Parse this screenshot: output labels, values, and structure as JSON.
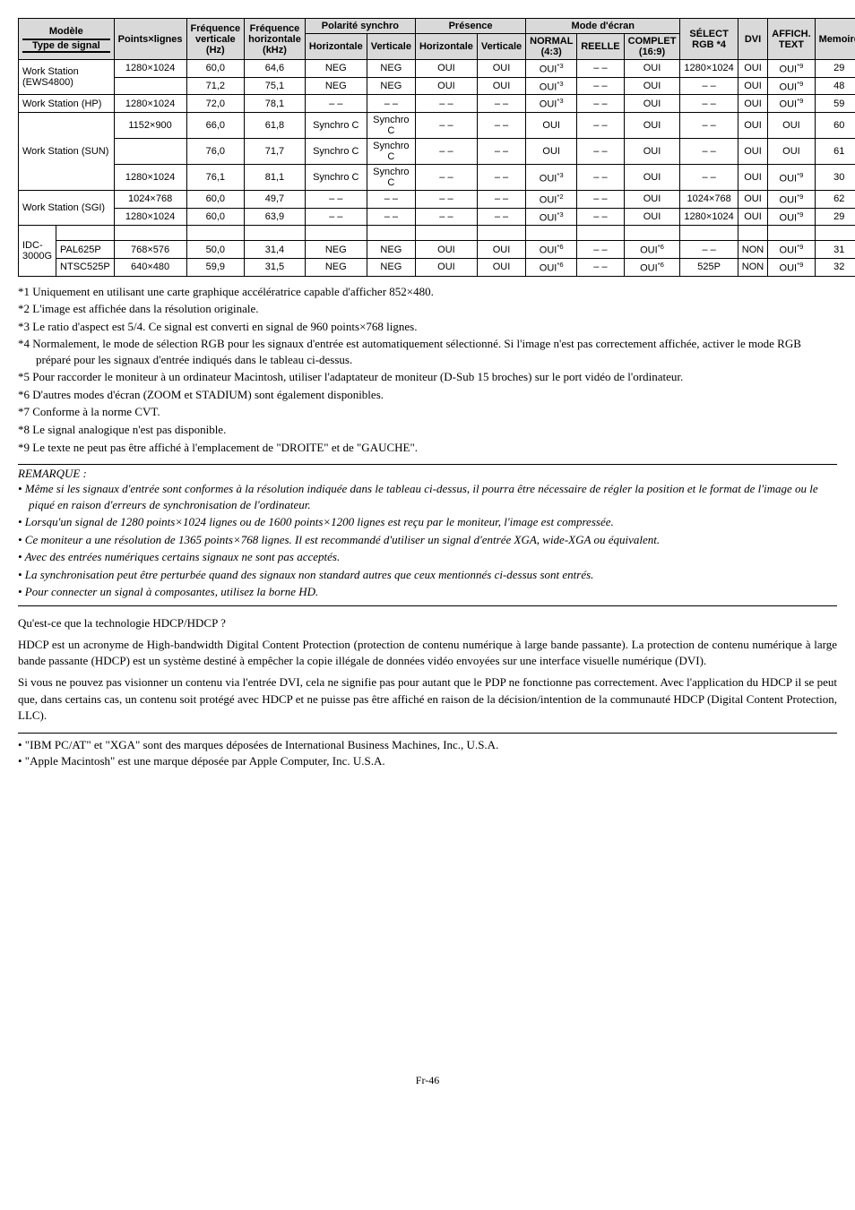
{
  "table": {
    "headers": {
      "modele": "Modèle",
      "type_signal": "Type de signal",
      "points_lignes": "Points×lignes",
      "freq_vert": "Fréquence verticale (Hz)",
      "freq_horiz": "Fréquence horizontale (kHz)",
      "polarite": "Polarité synchro",
      "polar_h": "Horizontale",
      "polar_v": "Verticale",
      "presence": "Présence",
      "pres_h": "Horizontale",
      "pres_v": "Verticale",
      "mode_ecran": "Mode d'écran",
      "mode_normal": "NORMAL (4:3)",
      "mode_reelle": "REELLE",
      "mode_complet": "COMPLET (16:9)",
      "select_rgb": "SÉLECT RGB *4",
      "dvi": "DVI",
      "affich_text": "AFFICH. TEXT",
      "memoire": "Memoire"
    },
    "rows": [
      {
        "model": "Work Station (EWS4800)",
        "rowspan": 2,
        "pl": "1280×1024",
        "fv": "60,0",
        "fh": "64,6",
        "ph": "NEG",
        "pv": "NEG",
        "prh": "OUI",
        "prv": "OUI",
        "mn": "OUI*3",
        "mr": "– –",
        "mc": "OUI",
        "rgb": "1280×1024",
        "dvi": "OUI",
        "at": "OUI*9",
        "mem": "29"
      },
      {
        "pl": "",
        "fv": "71,2",
        "fh": "75,1",
        "ph": "NEG",
        "pv": "NEG",
        "prh": "OUI",
        "prv": "OUI",
        "mn": "OUI*3",
        "mr": "– –",
        "mc": "OUI",
        "rgb": "– –",
        "dvi": "OUI",
        "at": "OUI*9",
        "mem": "48"
      },
      {
        "model": "Work Station (HP)",
        "rowspan": 1,
        "pl": "1280×1024",
        "fv": "72,0",
        "fh": "78,1",
        "ph": "– –",
        "pv": "– –",
        "prh": "– –",
        "prv": "– –",
        "mn": "OUI*3",
        "mr": "– –",
        "mc": "OUI",
        "rgb": "– –",
        "dvi": "OUI",
        "at": "OUI*9",
        "mem": "59"
      },
      {
        "model": "Work Station (SUN)",
        "rowspan": 3,
        "pl": "1152×900",
        "fv": "66,0",
        "fh": "61,8",
        "ph": "Synchro C",
        "pv": "Synchro C",
        "prh": "– –",
        "prv": "– –",
        "mn": "OUI",
        "mr": "– –",
        "mc": "OUI",
        "rgb": "– –",
        "dvi": "OUI",
        "at": "OUI",
        "mem": "60"
      },
      {
        "pl": "",
        "fv": "76,0",
        "fh": "71,7",
        "ph": "Synchro C",
        "pv": "Synchro C",
        "prh": "– –",
        "prv": "– –",
        "mn": "OUI",
        "mr": "– –",
        "mc": "OUI",
        "rgb": "– –",
        "dvi": "OUI",
        "at": "OUI",
        "mem": "61"
      },
      {
        "pl": "1280×1024",
        "fv": "76,1",
        "fh": "81,1",
        "ph": "Synchro C",
        "pv": "Synchro C",
        "prh": "– –",
        "prv": "– –",
        "mn": "OUI*3",
        "mr": "– –",
        "mc": "OUI",
        "rgb": "– –",
        "dvi": "OUI",
        "at": "OUI*9",
        "mem": "30"
      },
      {
        "model": "Work Station (SGI)",
        "rowspan": 2,
        "pl": "1024×768",
        "fv": "60,0",
        "fh": "49,7",
        "ph": "– –",
        "pv": "– –",
        "prh": "– –",
        "prv": "– –",
        "mn": "OUI*2",
        "mr": "– –",
        "mc": "OUI",
        "rgb": "1024×768",
        "dvi": "OUI",
        "at": "OUI*9",
        "mem": "62"
      },
      {
        "pl": "1280×1024",
        "fv": "60,0",
        "fh": "63,9",
        "ph": "– –",
        "pv": "– –",
        "prh": "– –",
        "prv": "– –",
        "mn": "OUI*3",
        "mr": "– –",
        "mc": "OUI",
        "rgb": "1280×1024",
        "dvi": "OUI",
        "at": "OUI*9",
        "mem": "29"
      },
      {
        "model": "IDC-3000G",
        "rowspan": 1,
        "empty": true
      },
      {
        "sub": "PAL625P",
        "pl": "768×576",
        "fv": "50,0",
        "fh": "31,4",
        "ph": "NEG",
        "pv": "NEG",
        "prh": "OUI",
        "prv": "OUI",
        "mn": "OUI*6",
        "mr": "– –",
        "mc": "OUI*6",
        "rgb": "– –",
        "dvi": "NON",
        "at": "OUI*9",
        "mem": "31"
      },
      {
        "sub": "NTSC525P",
        "pl": "640×480",
        "fv": "59,9",
        "fh": "31,5",
        "ph": "NEG",
        "pv": "NEG",
        "prh": "OUI",
        "prv": "OUI",
        "mn": "OUI*6",
        "mr": "– –",
        "mc": "OUI*6",
        "rgb": "525P",
        "dvi": "NON",
        "at": "OUI*9",
        "mem": "32"
      }
    ]
  },
  "footnotes": [
    "*1 Uniquement en utilisant une carte graphique accélératrice capable d'afficher 852×480.",
    "*2 L'image est affichée dans la résolution originale.",
    "*3 Le ratio d'aspect est 5/4. Ce signal est converti en signal de 960 points×768 lignes.",
    "*4 Normalement, le mode de sélection RGB pour les signaux d'entrée est automatiquement sélectionné. Si l'image n'est pas correctement affichée, activer le mode RGB préparé pour les signaux d'entrée indiqués dans le tableau ci-dessus.",
    "*5 Pour raccorder le moniteur à un ordinateur Macintosh, utiliser l'adaptateur de moniteur (D-Sub 15 broches) sur le port vidéo de l'ordinateur.",
    "*6 D'autres modes d'écran (ZOOM et STADIUM) sont également disponibles.",
    "*7 Conforme à la norme CVT.",
    "*8 Le signal analogique n'est pas disponible.",
    "*9 Le texte ne peut pas être affiché à l'emplacement de \"DROITE\" et de \"GAUCHE\"."
  ],
  "remark_title": "REMARQUE :",
  "remarks": [
    "• Même si les signaux d'entrée sont conformes à la résolution indiquée dans le tableau ci-dessus, il pourra être nécessaire de régler la position et le format de l'image ou le piqué en raison d'erreurs de synchronisation de l'ordinateur.",
    "• Lorsqu'un signal de 1280 points×1024 lignes ou de 1600 points×1200 lignes est reçu par le moniteur, l'image est compressée.",
    "• Ce moniteur a une résolution de 1365 points×768 lignes. Il est recommandé d'utiliser un signal d'entrée XGA, wide-XGA ou équivalent.",
    "• Avec des entrées numériques certains signaux ne sont pas acceptés.",
    "• La synchronisation peut être perturbée quand des signaux non standard autres que ceux mentionnés ci-dessus sont entrés.",
    "• Pour connecter un signal à composantes, utilisez la borne HD."
  ],
  "body": {
    "q": "Qu'est-ce que la technologie HDCP/HDCP ?",
    "p1": "HDCP est un acronyme de High-bandwidth Digital Content Protection (protection de contenu numérique à large bande passante). La protection de contenu numérique à large bande passante (HDCP) est un système destiné à empêcher la copie illégale de données vidéo envoyées sur une interface visuelle numérique (DVI).",
    "p2": "Si vous ne pouvez pas visionner un contenu via l'entrée DVI, cela ne signifie pas pour autant que le PDP ne fonctionne pas correctement. Avec l'application du HDCP il se peut que, dans certains cas, un contenu soit protégé avec HDCP et ne puisse pas être affiché en raison de la décision/intention de la communauté HDCP (Digital Content Protection, LLC)."
  },
  "trademarks": [
    "• \"IBM PC/AT\" et \"XGA\" sont des marques déposées de International Business Machines, Inc., U.S.A.",
    "• \"Apple Macintosh\" est une marque déposée par Apple Computer, Inc. U.S.A."
  ],
  "pageno": "Fr-46"
}
